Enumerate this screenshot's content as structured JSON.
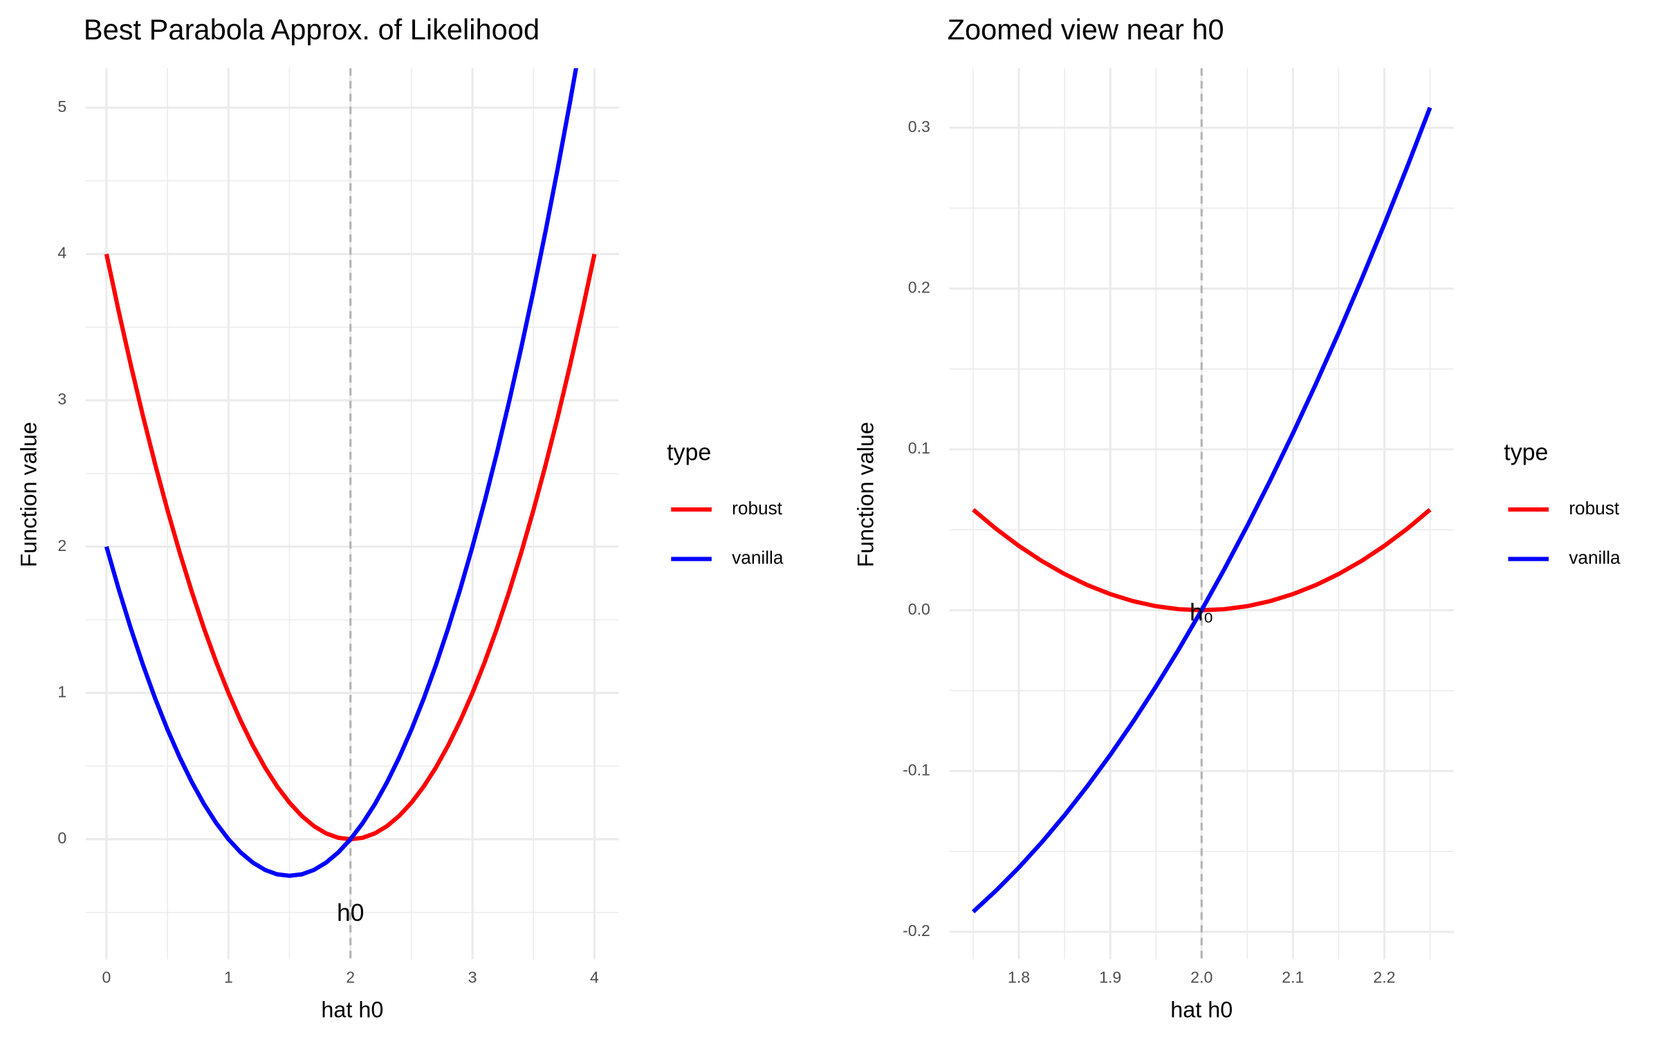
{
  "chart_data": [
    {
      "type": "line",
      "title": "Best Parabola Approx. of Likelihood",
      "x_label": "hat h0",
      "y_label": "Function value",
      "legend_title": "type",
      "x": [
        0,
        0.1,
        0.2,
        0.3,
        0.4,
        0.5,
        0.6,
        0.7,
        0.8,
        0.9,
        1,
        1.1,
        1.2,
        1.3,
        1.4,
        1.5,
        1.6,
        1.7,
        1.8,
        1.9,
        2,
        2.1,
        2.2,
        2.3,
        2.4,
        2.5,
        2.6,
        2.7,
        2.8,
        2.9,
        3,
        3.1,
        3.2,
        3.3,
        3.4,
        3.5,
        3.6,
        3.7,
        3.8,
        3.9,
        4
      ],
      "series": [
        {
          "name": "robust",
          "color": "#ff0000",
          "values": [
            4,
            3.61,
            3.24,
            2.89,
            2.56,
            2.25,
            1.96,
            1.69,
            1.44,
            1.21,
            1,
            0.81,
            0.64,
            0.49,
            0.36,
            0.25,
            0.16,
            0.09,
            0.04,
            0.01,
            0,
            0.01,
            0.04,
            0.09,
            0.16,
            0.25,
            0.36,
            0.49,
            0.64,
            0.81,
            1,
            1.21,
            1.44,
            1.69,
            1.96,
            2.25,
            2.56,
            2.89,
            3.24,
            3.61,
            4
          ]
        },
        {
          "name": "vanilla",
          "color": "#0000ff",
          "values": [
            2,
            1.71,
            1.44,
            1.19,
            0.96,
            0.75,
            0.56,
            0.39,
            0.24,
            0.11,
            0,
            -0.09,
            -0.16,
            -0.21,
            -0.24,
            -0.25,
            -0.24,
            -0.21,
            -0.16,
            -0.09,
            0,
            0.11,
            0.24,
            0.39,
            0.56,
            0.75,
            0.96,
            1.19,
            1.44,
            1.71,
            2,
            2.31,
            2.64,
            2.99,
            3.36,
            3.75,
            4.16,
            4.59,
            5.04,
            5.51,
            6
          ]
        }
      ],
      "xlim": [
        -0.17,
        4.2
      ],
      "ylim": [
        -0.82,
        5.27
      ],
      "xticks": [
        0,
        1,
        2,
        3,
        4
      ],
      "yticks": [
        0,
        1,
        2,
        3,
        4,
        5
      ],
      "xminor": [
        0.5,
        1.5,
        2.5,
        3.5
      ],
      "yminor": [
        -0.5,
        0.5,
        1.5,
        2.5,
        3.5,
        4.5
      ],
      "grid": true,
      "vline": 2,
      "annotation": "h0"
    },
    {
      "type": "line",
      "title": "Zoomed view near h0",
      "x_label": "hat h0",
      "y_label": "Function value",
      "legend_title": "type",
      "x": [
        1.75,
        1.775,
        1.8,
        1.825,
        1.85,
        1.875,
        1.9,
        1.925,
        1.95,
        1.975,
        2,
        2.025,
        2.05,
        2.075,
        2.1,
        2.125,
        2.15,
        2.175,
        2.2,
        2.225,
        2.25
      ],
      "series": [
        {
          "name": "robust",
          "color": "#ff0000",
          "values": [
            0.0625,
            0.050625,
            0.04,
            0.030625,
            0.0225,
            0.015625,
            0.01,
            0.005625,
            0.0025,
            0.000625,
            0,
            0.000625,
            0.0025,
            0.005625,
            0.01,
            0.015625,
            0.0225,
            0.030625,
            0.04,
            0.050625,
            0.0625
          ]
        },
        {
          "name": "vanilla",
          "color": "#0000ff",
          "values": [
            -0.1875,
            -0.174375,
            -0.16,
            -0.144375,
            -0.1275,
            -0.109375,
            -0.09,
            -0.069375,
            -0.0475,
            -0.024375,
            0,
            0.025625,
            0.0525,
            0.080625,
            0.11,
            0.140625,
            0.1725,
            0.205625,
            0.24,
            0.275625,
            0.3125
          ]
        }
      ],
      "xlim": [
        1.724,
        2.276
      ],
      "ylim": [
        -0.217,
        0.337
      ],
      "xticks": [
        1.8,
        1.9,
        {
          "value": 2,
          "label": "2.0"
        },
        2.1,
        2.2
      ],
      "yticks": [
        -0.2,
        -0.1,
        {
          "value": 0,
          "label": "0.0"
        },
        0.1,
        0.2,
        0.3
      ],
      "xminor": [
        1.75,
        1.85,
        1.95,
        2.05,
        2.15,
        2.25
      ],
      "yminor": [
        -0.15,
        -0.05,
        0.05,
        0.15,
        0.25
      ],
      "grid": true,
      "vline": 2,
      "annotation": "h₀"
    }
  ]
}
